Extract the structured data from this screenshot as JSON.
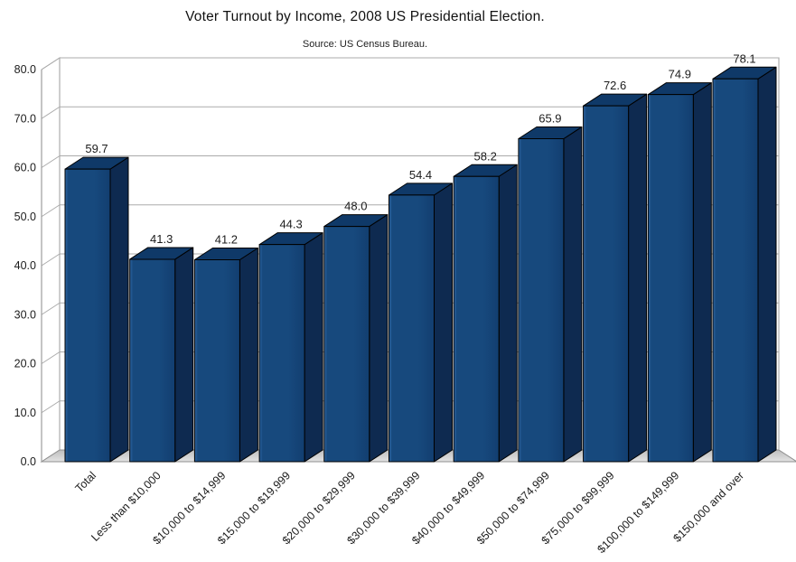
{
  "chart_data": {
    "type": "bar",
    "style": "3d-column",
    "title": "Voter Turnout by Income, 2008 US Presidential Election.",
    "subtitle": "Source: US Census Bureau.",
    "categories": [
      "Total",
      "Less than $10,000",
      "$10,000 to $14,999",
      "$15,000 to $19,999",
      "$20,000 to $29,999",
      "$30,000 to $39,999",
      "$40,000 to $49,999",
      "$50,000 to $74,999",
      "$75,000 to $99,999",
      "$100,000 to $149,999",
      "$150,000 and over"
    ],
    "values": [
      59.7,
      41.3,
      41.2,
      44.3,
      48.0,
      54.4,
      58.2,
      65.9,
      72.6,
      74.9,
      78.1
    ],
    "value_labels_shown": true,
    "xlabel": "",
    "ylabel": "",
    "ylim": [
      0,
      80
    ],
    "ytick_step": 10,
    "yticks": [
      "0.0",
      "10.0",
      "20.0",
      "30.0",
      "40.0",
      "50.0",
      "60.0",
      "70.0",
      "80.0"
    ],
    "grid": true,
    "legend": "none",
    "colors": {
      "bar_front": "#17497D",
      "bar_front_light": "#2E66A4",
      "bar_front_dark": "#123E70",
      "bar_side": "#0E2A50",
      "bar_top": "#0F3968",
      "bar_outline": "#000000",
      "gridline": "#ABABAB",
      "wall_border": "#9E9E9E",
      "wall_fill": "#FFFFFF",
      "floor_back": "#BEBEBE",
      "floor_front": "#E3E3E3",
      "floor_border": "#8F8F8F",
      "text": "#1C1C1C"
    }
  }
}
